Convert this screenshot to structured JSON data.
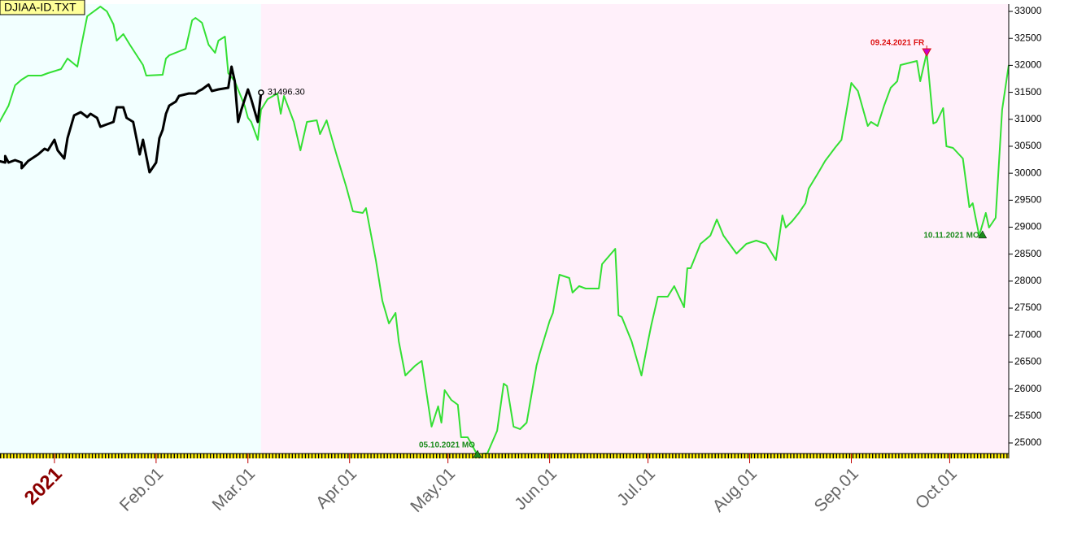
{
  "chart_data": {
    "type": "line",
    "title": "DJIAA-ID.TXT",
    "xlim": [
      -16.6,
      291
    ],
    "ylim": [
      24804,
      33136
    ],
    "xticks": [
      {
        "value": 0,
        "label": "2021"
      },
      {
        "value": 31,
        "label": "Feb.01"
      },
      {
        "value": 59,
        "label": "Mar.01"
      },
      {
        "value": 90,
        "label": "Apr.01"
      },
      {
        "value": 120,
        "label": "May.01"
      },
      {
        "value": 151,
        "label": "Jun.01"
      },
      {
        "value": 181,
        "label": "Jul.01"
      },
      {
        "value": 212,
        "label": "Aug.01"
      },
      {
        "value": 243,
        "label": "Sep.01"
      },
      {
        "value": 273,
        "label": "Oct.01"
      }
    ],
    "yticks": [
      25000,
      25500,
      26000,
      26500,
      27000,
      27500,
      28000,
      28500,
      29000,
      29500,
      30000,
      30500,
      31000,
      31500,
      32000,
      32500,
      33000
    ],
    "series": [
      {
        "color": "#33e033",
        "x": [
          -17,
          -14,
          -12,
          -10,
          -8,
          -4,
          -2,
          2,
          4,
          7,
          8,
          10,
          14,
          16,
          18,
          19,
          21,
          23,
          27,
          28,
          33,
          34,
          35,
          40,
          42,
          43,
          45,
          47,
          49,
          50,
          52,
          53,
          55,
          58,
          59,
          60,
          62,
          63,
          65,
          68,
          69,
          70,
          73,
          75,
          77,
          80,
          81,
          83,
          86,
          89,
          91,
          94,
          95,
          98,
          100,
          102,
          104,
          105,
          107,
          110,
          112,
          115,
          117,
          118,
          119,
          121,
          123,
          124,
          126,
          127,
          129,
          131,
          132,
          135,
          137,
          138,
          140,
          142,
          144,
          147,
          148,
          151,
          152,
          154,
          157,
          158,
          160,
          162,
          166,
          167,
          171,
          172,
          173,
          176,
          179,
          181,
          182,
          184,
          187,
          189,
          192,
          193,
          194,
          197,
          200,
          202,
          204,
          208,
          211,
          214,
          217,
          220,
          222,
          223,
          225,
          227,
          229,
          230,
          233,
          235,
          238,
          240,
          243,
          245,
          248,
          249,
          251,
          253,
          255,
          257,
          258,
          260,
          263,
          264,
          266,
          268,
          269,
          271,
          272,
          274,
          277,
          279,
          280,
          282,
          284,
          285,
          287,
          289,
          291
        ],
        "values": [
          30921,
          31252,
          31629,
          31735,
          31810,
          31810,
          31855,
          31930,
          32126,
          31976,
          32307,
          32910,
          33090,
          33000,
          32760,
          32458,
          32580,
          32382,
          32006,
          31810,
          31825,
          32126,
          32186,
          32307,
          32835,
          32880,
          32790,
          32382,
          32232,
          32458,
          32533,
          31855,
          31704,
          31252,
          31026,
          30951,
          30620,
          31177,
          31373,
          31478,
          31102,
          31433,
          30951,
          30424,
          30951,
          30981,
          30725,
          30981,
          30348,
          29746,
          29294,
          29264,
          29354,
          28390,
          27637,
          27215,
          27411,
          26884,
          26251,
          26432,
          26522,
          25302,
          25679,
          25377,
          25979,
          25798,
          25708,
          25106,
          25106,
          25000,
          24774,
          24804,
          24804,
          25226,
          26100,
          26055,
          25302,
          25256,
          25377,
          26432,
          26658,
          27260,
          27411,
          28118,
          28058,
          27787,
          27908,
          27863,
          27863,
          28315,
          28600,
          27365,
          27335,
          26884,
          26251,
          26884,
          27185,
          27712,
          27712,
          27908,
          27516,
          28239,
          28239,
          28691,
          28843,
          29143,
          28843,
          28510,
          28691,
          28751,
          28691,
          28390,
          29219,
          28993,
          29113,
          29264,
          29445,
          29716,
          30017,
          30228,
          30469,
          30620,
          31674,
          31524,
          30876,
          30951,
          30876,
          31252,
          31584,
          31704,
          32006,
          32036,
          32081,
          31704,
          32232,
          30921,
          30951,
          31207,
          30499,
          30469,
          30273,
          29369,
          29445,
          28843,
          29264,
          28993,
          29173,
          31177,
          32006
        ]
      },
      {
        "color": "#000000",
        "x": [
          -17,
          -15,
          -15,
          -14,
          -12,
          -10,
          -10,
          -8,
          -5,
          -3,
          -2,
          0,
          1,
          3,
          4,
          6,
          8,
          10,
          11,
          13,
          14,
          16,
          18,
          19,
          21,
          22,
          24,
          26,
          27,
          28,
          29,
          31,
          32,
          33,
          34,
          35,
          37,
          38,
          41,
          43,
          44,
          45,
          47,
          48,
          50,
          53,
          54,
          55,
          56,
          57,
          59,
          60,
          62,
          63
        ],
        "values": [
          30228,
          30198,
          30318,
          30198,
          30243,
          30198,
          30092,
          30228,
          30348,
          30454,
          30424,
          30620,
          30424,
          30273,
          30650,
          31072,
          31132,
          31042,
          31102,
          31026,
          30861,
          30906,
          30951,
          31222,
          31222,
          31026,
          30951,
          30348,
          30620,
          30318,
          30017,
          30198,
          30650,
          30800,
          31102,
          31252,
          31328,
          31433,
          31478,
          31478,
          31524,
          31554,
          31644,
          31524,
          31554,
          31584,
          31976,
          31704,
          30951,
          31177,
          31554,
          31373,
          30951,
          31496.3
        ]
      }
    ],
    "annotations": [
      {
        "text": "31496.30",
        "x": 63,
        "y": 31496.3,
        "color": "#000000",
        "marker": "circle",
        "position": "right"
      },
      {
        "text": "09.24.2021 FR",
        "x": 266,
        "y": 32232,
        "color": "#dd1111",
        "marker": "down",
        "position": "above-left"
      },
      {
        "text": "05.10.2021 MO",
        "x": 129,
        "y": 24774,
        "color": "#1a8a1a",
        "marker": "up",
        "position": "above-left"
      },
      {
        "text": "10.11.2021 MO",
        "x": 283,
        "y": 28843,
        "color": "#1a8a1a",
        "marker": "up",
        "position": "left"
      }
    ]
  }
}
